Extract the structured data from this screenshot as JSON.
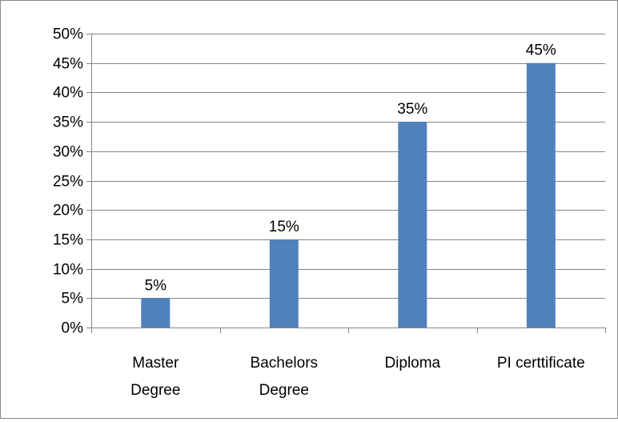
{
  "chart_data": {
    "type": "bar",
    "title": "",
    "xlabel": "",
    "ylabel": "",
    "categories": [
      [
        "Master",
        "Degree"
      ],
      [
        "Bachelors",
        "Degree"
      ],
      [
        "Diploma"
      ],
      [
        "PI certtificate"
      ]
    ],
    "values": [
      5,
      15,
      35,
      45
    ],
    "data_labels": [
      "5%",
      "15%",
      "35%",
      "45%"
    ],
    "ylim": [
      0,
      50
    ],
    "yticks": [
      0,
      5,
      10,
      15,
      20,
      25,
      30,
      35,
      40,
      45,
      50
    ],
    "ytick_labels": [
      "0%",
      "5%",
      "10%",
      "15%",
      "20%",
      "25%",
      "30%",
      "35%",
      "40%",
      "45%",
      "50%"
    ],
    "grid": true,
    "legend": "none",
    "colors": {
      "bar": "#4F81BD",
      "grid": "#868686",
      "axis": "#868686"
    }
  }
}
